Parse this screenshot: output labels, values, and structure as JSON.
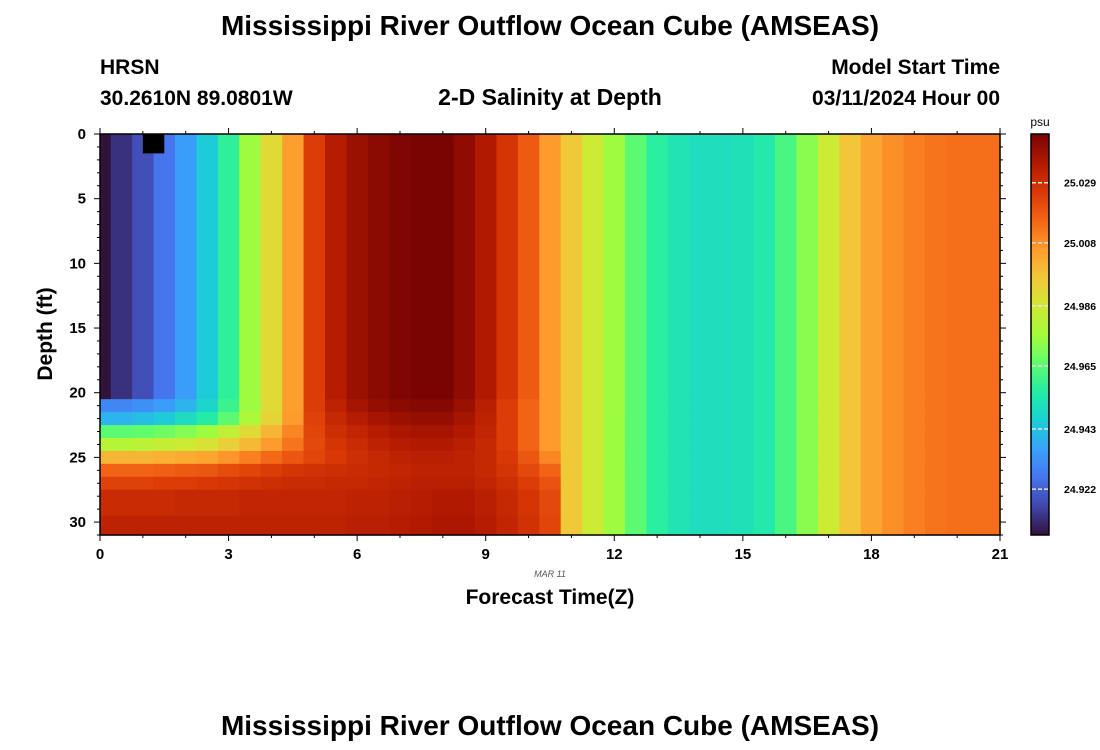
{
  "page_title": "Mississippi River Outflow Ocean Cube (AMSEAS)",
  "station": {
    "name": "HRSN",
    "coords": "30.2610N  89.0801W"
  },
  "model_start": {
    "label": "Model Start Time",
    "value": "03/11/2024 Hour 00"
  },
  "subtitle": "2-D Salinity at Depth",
  "footer_title": "Mississippi River Outflow Ocean Cube (AMSEAS)",
  "chart_data": {
    "type": "heatmap",
    "title": "2-D Salinity at Depth",
    "xlabel": "Forecast Time(Z)",
    "ylabel": "Depth (ft)",
    "date_label": "MAR 11",
    "xlim": [
      0,
      21
    ],
    "ylim": [
      31,
      0
    ],
    "x_ticks": [
      0,
      3,
      6,
      9,
      12,
      15,
      18,
      21
    ],
    "y_ticks": [
      0,
      5,
      10,
      15,
      20,
      25,
      30
    ],
    "x_step_hours": 0.5,
    "colorbar": {
      "unit": "psu",
      "range": [
        24.906,
        25.046
      ],
      "tick_values": [
        24.922,
        24.943,
        24.965,
        24.986,
        25.008,
        25.029
      ],
      "tick_labels": [
        "24.922",
        "24.943",
        "24.965",
        "24.986",
        "25.008",
        "25.029"
      ],
      "colormap": [
        "#30123b",
        "#4145ab",
        "#4675ed",
        "#39a2fc",
        "#1bcfd4",
        "#24eca6",
        "#61fc6c",
        "#a4fc3b",
        "#d1e834",
        "#f3c63a",
        "#fe9b2d",
        "#f36315",
        "#d93806",
        "#b11901",
        "#7a0402"
      ]
    },
    "series": [
      {
        "depth_from": 0,
        "depth_to": 20.5,
        "values": [
          24.906,
          24.912,
          24.918,
          24.926,
          24.935,
          24.945,
          24.958,
          24.975,
          24.99,
          25.005,
          25.025,
          25.035,
          25.04,
          25.043,
          25.045,
          25.046,
          25.046,
          25.042,
          25.036,
          25.027,
          25.018,
          25.006,
          24.995,
          24.985,
          24.975,
          24.965,
          24.957,
          24.953,
          24.951,
          24.951,
          24.952,
          24.955,
          24.962,
          24.972,
          24.985,
          24.996,
          25.004,
          25.008,
          25.011,
          25.013,
          25.014,
          25.014,
          25.014
        ]
      },
      {
        "depth_from": 20.5,
        "depth_to": 21.5,
        "values": [
          24.93,
          24.93,
          24.932,
          24.935,
          24.94,
          24.948,
          24.96,
          24.975,
          24.99,
          25.005,
          25.025,
          25.033,
          25.038,
          25.041,
          25.043,
          25.044,
          25.044,
          25.04,
          25.034,
          25.025,
          25.016,
          25.006,
          24.995,
          24.985,
          24.975,
          24.965,
          24.957,
          24.953,
          24.951,
          24.951,
          24.952,
          24.955,
          24.962,
          24.972,
          24.985,
          24.996,
          25.004,
          25.008,
          25.011,
          25.013,
          25.014,
          25.014,
          25.014
        ]
      },
      {
        "depth_from": 21.5,
        "depth_to": 22.5,
        "values": [
          24.94,
          24.94,
          24.942,
          24.945,
          24.95,
          24.956,
          24.965,
          24.978,
          24.992,
          25.006,
          25.024,
          25.031,
          25.035,
          25.038,
          25.04,
          25.041,
          25.041,
          25.038,
          25.033,
          25.025,
          25.016,
          25.006,
          24.995,
          24.985,
          24.975,
          24.965,
          24.957,
          24.953,
          24.951,
          24.951,
          24.952,
          24.955,
          24.962,
          24.972,
          24.985,
          24.996,
          25.004,
          25.008,
          25.011,
          25.013,
          25.014,
          25.014,
          25.014
        ]
      },
      {
        "depth_from": 22.5,
        "depth_to": 23.5,
        "values": [
          24.965,
          24.965,
          24.966,
          24.968,
          24.971,
          24.975,
          24.982,
          24.99,
          25.0,
          25.01,
          25.023,
          25.029,
          25.032,
          25.035,
          25.037,
          25.038,
          25.038,
          25.036,
          25.032,
          25.025,
          25.016,
          25.006,
          24.995,
          24.985,
          24.975,
          24.965,
          24.957,
          24.953,
          24.951,
          24.951,
          24.952,
          24.955,
          24.962,
          24.972,
          24.985,
          24.996,
          25.004,
          25.008,
          25.011,
          25.013,
          25.014,
          25.014,
          25.014
        ]
      },
      {
        "depth_from": 23.5,
        "depth_to": 24.5,
        "values": [
          24.98,
          24.98,
          24.981,
          24.983,
          24.985,
          24.988,
          24.993,
          24.999,
          25.006,
          25.013,
          25.022,
          25.027,
          25.03,
          25.033,
          25.035,
          25.036,
          25.036,
          25.034,
          25.031,
          25.025,
          25.016,
          25.006,
          24.995,
          24.985,
          24.975,
          24.965,
          24.957,
          24.953,
          24.951,
          24.951,
          24.952,
          24.955,
          24.962,
          24.972,
          24.985,
          24.996,
          25.004,
          25.008,
          25.011,
          25.013,
          25.014,
          25.014,
          25.014
        ]
      },
      {
        "depth_from": 24.5,
        "depth_to": 25.5,
        "values": [
          25.0,
          25.0,
          25.0,
          25.001,
          25.002,
          25.004,
          25.007,
          25.011,
          25.015,
          25.019,
          25.023,
          25.026,
          25.029,
          25.031,
          25.033,
          25.034,
          25.034,
          25.033,
          25.031,
          25.026,
          25.019,
          25.01,
          24.995,
          24.985,
          24.975,
          24.965,
          24.957,
          24.953,
          24.951,
          24.951,
          24.952,
          24.955,
          24.962,
          24.972,
          24.985,
          24.996,
          25.004,
          25.008,
          25.011,
          25.013,
          25.014,
          25.014,
          25.014
        ]
      },
      {
        "depth_from": 25.5,
        "depth_to": 26.5,
        "values": [
          25.016,
          25.016,
          25.016,
          25.017,
          25.018,
          25.019,
          25.021,
          25.023,
          25.025,
          25.027,
          25.028,
          25.029,
          25.03,
          25.031,
          25.032,
          25.033,
          25.033,
          25.033,
          25.031,
          25.027,
          25.022,
          25.016,
          24.995,
          24.985,
          24.975,
          24.965,
          24.957,
          24.953,
          24.951,
          24.951,
          24.952,
          24.955,
          24.962,
          24.972,
          24.985,
          24.996,
          25.004,
          25.008,
          25.011,
          25.013,
          25.014,
          25.014,
          25.014
        ]
      },
      {
        "depth_from": 26.5,
        "depth_to": 27.5,
        "values": [
          25.024,
          25.024,
          25.024,
          25.025,
          25.025,
          25.026,
          25.027,
          25.028,
          25.029,
          25.03,
          25.03,
          25.031,
          25.031,
          25.032,
          25.033,
          25.034,
          25.034,
          25.034,
          25.032,
          25.029,
          25.025,
          25.02,
          24.995,
          24.985,
          24.975,
          24.965,
          24.957,
          24.953,
          24.951,
          24.951,
          24.952,
          24.955,
          24.962,
          24.972,
          24.985,
          24.996,
          25.004,
          25.008,
          25.011,
          25.013,
          25.014,
          25.014,
          25.014
        ]
      },
      {
        "depth_from": 27.5,
        "depth_to": 29.5,
        "values": [
          25.03,
          25.03,
          25.03,
          25.03,
          25.031,
          25.031,
          25.031,
          25.032,
          25.032,
          25.032,
          25.032,
          25.032,
          25.033,
          25.033,
          25.034,
          25.035,
          25.036,
          25.036,
          25.034,
          25.031,
          25.027,
          25.022,
          24.995,
          24.985,
          24.975,
          24.965,
          24.957,
          24.953,
          24.951,
          24.951,
          24.952,
          24.955,
          24.962,
          24.972,
          24.985,
          24.996,
          25.004,
          25.008,
          25.011,
          25.013,
          25.014,
          25.014,
          25.014
        ]
      },
      {
        "depth_from": 29.5,
        "depth_to": 31,
        "values": [
          25.033,
          25.033,
          25.033,
          25.033,
          25.033,
          25.033,
          25.033,
          25.033,
          25.033,
          25.033,
          25.033,
          25.033,
          25.034,
          25.034,
          25.035,
          25.036,
          25.037,
          25.037,
          25.035,
          25.032,
          25.028,
          25.023,
          24.995,
          24.985,
          24.975,
          24.965,
          24.957,
          24.953,
          24.951,
          24.951,
          24.952,
          24.955,
          24.962,
          24.972,
          24.985,
          24.996,
          25.004,
          25.008,
          25.011,
          25.013,
          25.014,
          25.014,
          25.014
        ]
      }
    ],
    "missing_cells": [
      {
        "x_from": 1.0,
        "x_to": 1.5,
        "depth_from": 0,
        "depth_to": 1.5
      }
    ]
  }
}
